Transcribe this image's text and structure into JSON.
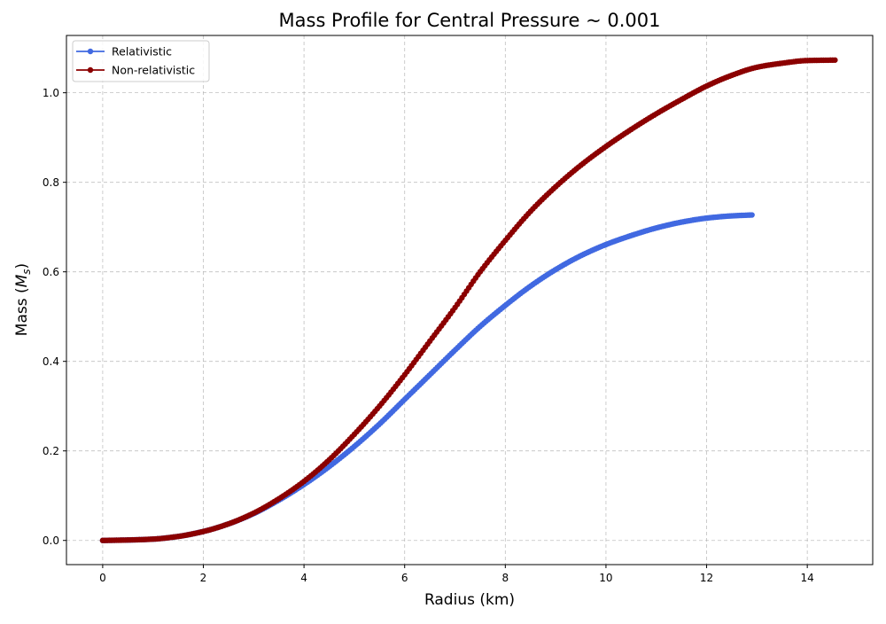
{
  "chart_data": {
    "type": "line",
    "title": "Mass Profile for Central Pressure ~ 0.001",
    "xlabel": "Radius (km)",
    "ylabel_main": "Mass (",
    "ylabel_math": "M",
    "ylabel_sub": "s",
    "ylabel_close": ")",
    "xlim": [
      -0.72,
      15.3
    ],
    "ylim": [
      -0.054,
      1.128
    ],
    "xticks": [
      0,
      2,
      4,
      6,
      8,
      10,
      12,
      14
    ],
    "yticks": [
      0.0,
      0.2,
      0.4,
      0.6,
      0.8,
      1.0
    ],
    "xtick_labels": [
      "0",
      "2",
      "4",
      "6",
      "8",
      "10",
      "12",
      "14"
    ],
    "ytick_labels": [
      "0.0",
      "0.2",
      "0.4",
      "0.6",
      "0.8",
      "1.0"
    ],
    "grid": true,
    "legend_position": "top-left",
    "series": [
      {
        "name": "Relativistic",
        "color": "#4169e1",
        "marker": "circle",
        "x": [
          0,
          0.5,
          1,
          1.5,
          2,
          2.5,
          3,
          3.5,
          4,
          4.5,
          5,
          5.5,
          6,
          6.5,
          7,
          7.5,
          8,
          8.5,
          9,
          9.5,
          10,
          10.5,
          11,
          11.5,
          12,
          12.5,
          12.9
        ],
        "y": [
          0.0,
          0.001,
          0.003,
          0.009,
          0.02,
          0.037,
          0.06,
          0.09,
          0.125,
          0.165,
          0.21,
          0.26,
          0.315,
          0.37,
          0.425,
          0.478,
          0.525,
          0.568,
          0.605,
          0.636,
          0.661,
          0.681,
          0.698,
          0.711,
          0.72,
          0.725,
          0.727
        ]
      },
      {
        "name": "Non-relativistic",
        "color": "#8b0000",
        "marker": "circle",
        "x": [
          0,
          0.5,
          1,
          1.5,
          2,
          2.5,
          3,
          3.5,
          4,
          4.5,
          5,
          5.5,
          6,
          6.5,
          7,
          7.5,
          8,
          8.5,
          9,
          9.5,
          10,
          10.5,
          11,
          11.5,
          12,
          12.5,
          13,
          13.5,
          14,
          14.55
        ],
        "y": [
          0.0,
          0.001,
          0.003,
          0.009,
          0.02,
          0.037,
          0.061,
          0.093,
          0.132,
          0.18,
          0.237,
          0.3,
          0.37,
          0.445,
          0.52,
          0.6,
          0.67,
          0.735,
          0.79,
          0.838,
          0.88,
          0.918,
          0.953,
          0.985,
          1.015,
          1.039,
          1.057,
          1.066,
          1.072,
          1.073
        ]
      }
    ]
  }
}
